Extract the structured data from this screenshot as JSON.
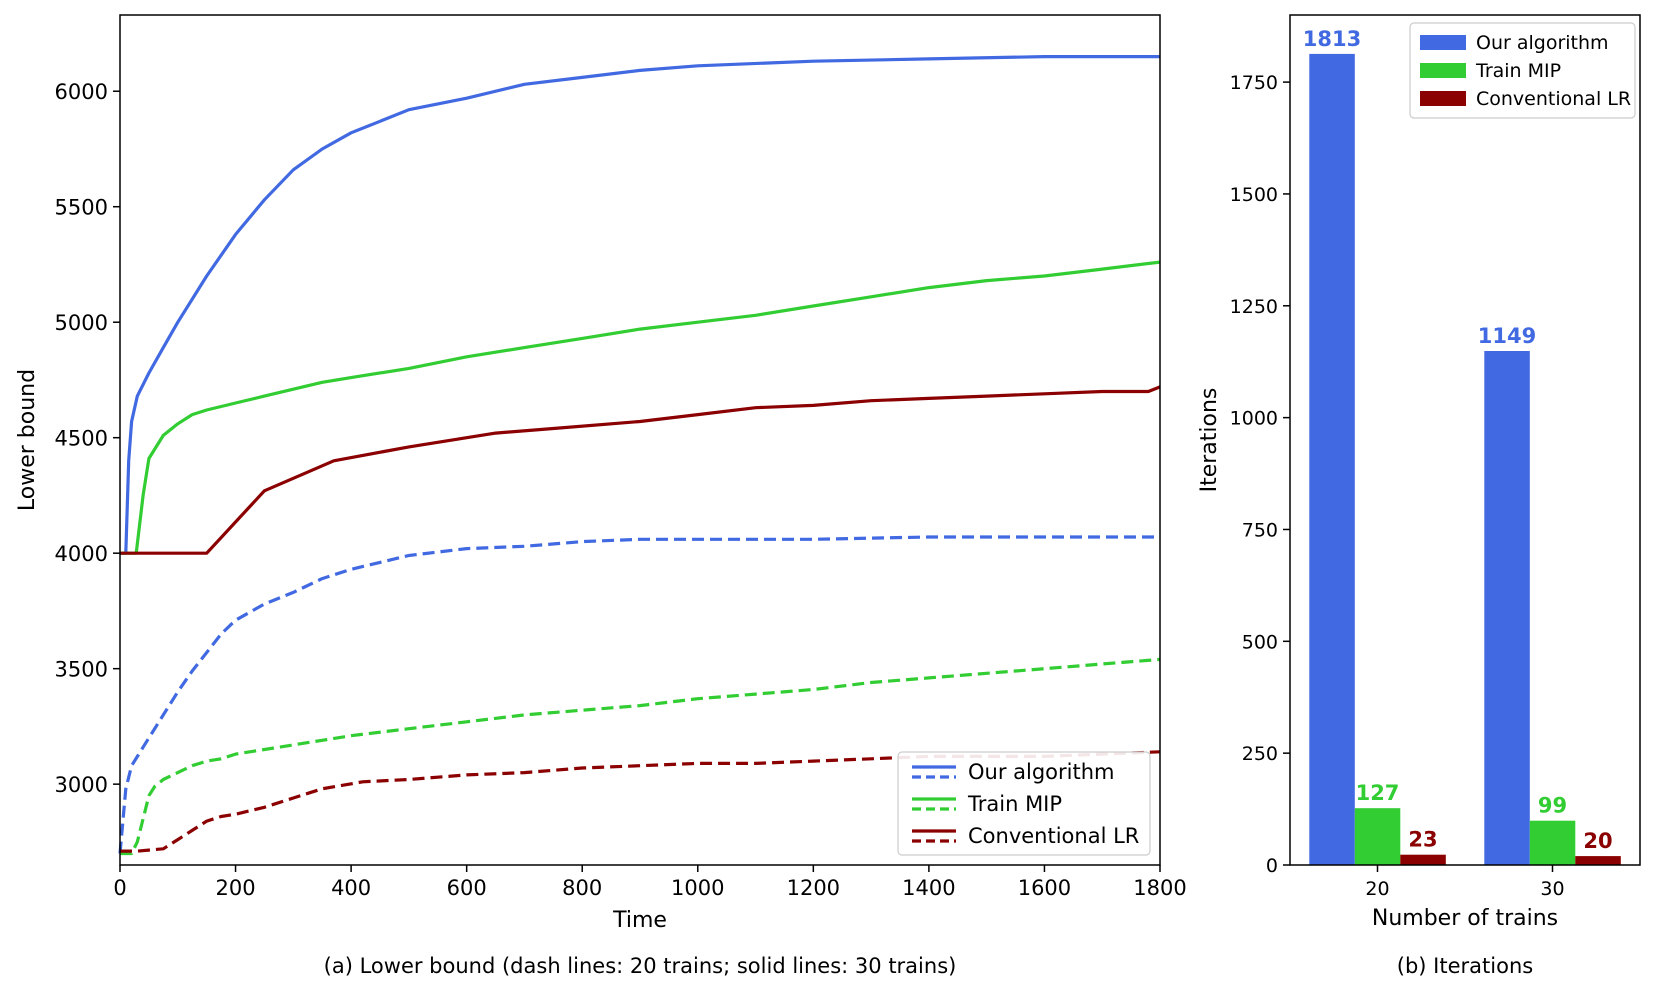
{
  "chart_data": [
    {
      "type": "line",
      "caption": "(a) Lower bound (dash lines: 20 trains; solid lines: 30 trains)",
      "xlabel": "Time",
      "ylabel": "Lower bound",
      "xlim": [
        0,
        1800
      ],
      "ylim": [
        2650,
        6330
      ],
      "xticks": [
        0,
        200,
        400,
        600,
        800,
        1000,
        1200,
        1400,
        1600,
        1800
      ],
      "yticks": [
        3000,
        3500,
        4000,
        4500,
        5000,
        5500,
        6000
      ],
      "grid": false,
      "legend": {
        "placement": "lower-right",
        "entries": [
          {
            "label": "Our algorithm",
            "color": "#4169E1"
          },
          {
            "label": "Train MIP",
            "color": "#32CD32"
          },
          {
            "label": "Conventional LR",
            "color": "#8B0000"
          }
        ]
      },
      "series": [
        {
          "name": "Our algorithm",
          "trains": 30,
          "style": "solid",
          "color": "#4169E1",
          "x": [
            0,
            10,
            15,
            20,
            30,
            50,
            75,
            100,
            150,
            200,
            250,
            300,
            350,
            400,
            450,
            500,
            600,
            700,
            800,
            900,
            1000,
            1200,
            1400,
            1600,
            1800
          ],
          "y": [
            4000,
            4000,
            4400,
            4570,
            4680,
            4780,
            4890,
            5000,
            5200,
            5380,
            5530,
            5660,
            5750,
            5820,
            5870,
            5920,
            5970,
            6030,
            6060,
            6090,
            6110,
            6130,
            6140,
            6150,
            6150
          ]
        },
        {
          "name": "Train MIP",
          "trains": 30,
          "style": "solid",
          "color": "#32CD32",
          "x": [
            0,
            28,
            40,
            50,
            75,
            100,
            125,
            150,
            200,
            250,
            300,
            350,
            400,
            500,
            600,
            700,
            800,
            900,
            1000,
            1100,
            1200,
            1300,
            1400,
            1500,
            1600,
            1700,
            1800
          ],
          "y": [
            4000,
            4000,
            4250,
            4410,
            4510,
            4560,
            4600,
            4620,
            4650,
            4680,
            4710,
            4740,
            4760,
            4800,
            4850,
            4890,
            4930,
            4970,
            5000,
            5030,
            5070,
            5110,
            5150,
            5180,
            5200,
            5230,
            5260
          ]
        },
        {
          "name": "Conventional LR",
          "trains": 30,
          "style": "solid",
          "color": "#8B0000",
          "x": [
            0,
            150,
            250,
            370,
            500,
            650,
            750,
            900,
            1000,
            1100,
            1200,
            1300,
            1400,
            1500,
            1600,
            1700,
            1780,
            1800
          ],
          "y": [
            4000,
            4000,
            4270,
            4400,
            4460,
            4520,
            4540,
            4570,
            4600,
            4630,
            4640,
            4660,
            4670,
            4680,
            4690,
            4700,
            4700,
            4720
          ]
        },
        {
          "name": "Our algorithm",
          "trains": 20,
          "style": "dashed",
          "color": "#4169E1",
          "x": [
            0,
            10,
            20,
            40,
            75,
            100,
            125,
            150,
            175,
            200,
            250,
            300,
            350,
            400,
            450,
            500,
            600,
            700,
            800,
            900,
            1000,
            1200,
            1400,
            1600,
            1800
          ],
          "y": [
            2700,
            2980,
            3080,
            3160,
            3300,
            3400,
            3490,
            3570,
            3650,
            3710,
            3780,
            3830,
            3890,
            3930,
            3960,
            3990,
            4020,
            4030,
            4050,
            4060,
            4060,
            4060,
            4070,
            4070,
            4070
          ]
        },
        {
          "name": "Train MIP",
          "trains": 20,
          "style": "dashed",
          "color": "#32CD32",
          "x": [
            0,
            20,
            30,
            40,
            50,
            60,
            75,
            100,
            125,
            150,
            175,
            200,
            250,
            300,
            350,
            400,
            500,
            600,
            700,
            800,
            900,
            1000,
            1100,
            1200,
            1300,
            1400,
            1500,
            1600,
            1700,
            1800
          ],
          "y": [
            2700,
            2700,
            2750,
            2850,
            2950,
            2990,
            3020,
            3050,
            3080,
            3100,
            3110,
            3130,
            3150,
            3170,
            3190,
            3210,
            3240,
            3270,
            3300,
            3320,
            3340,
            3370,
            3390,
            3410,
            3440,
            3460,
            3480,
            3500,
            3520,
            3540
          ]
        },
        {
          "name": "Conventional LR",
          "trains": 20,
          "style": "dashed",
          "color": "#8B0000",
          "x": [
            0,
            30,
            75,
            100,
            125,
            150,
            175,
            200,
            250,
            300,
            350,
            420,
            500,
            600,
            700,
            800,
            900,
            1000,
            1100,
            1200,
            1300,
            1400,
            1500,
            1600,
            1700,
            1800
          ],
          "y": [
            2710,
            2710,
            2720,
            2760,
            2800,
            2840,
            2860,
            2870,
            2900,
            2940,
            2980,
            3010,
            3020,
            3040,
            3050,
            3070,
            3080,
            3090,
            3090,
            3100,
            3110,
            3120,
            3120,
            3120,
            3130,
            3140
          ]
        }
      ]
    },
    {
      "type": "bar",
      "caption": "(b) Iterations",
      "xlabel": "Number of trains",
      "ylabel": "Iterations",
      "categories": [
        "20",
        "30"
      ],
      "ylim": [
        0,
        1900
      ],
      "yticks": [
        0,
        250,
        500,
        750,
        1000,
        1250,
        1500,
        1750
      ],
      "grid": false,
      "legend": {
        "placement": "top-right"
      },
      "series": [
        {
          "name": "Our algorithm",
          "color": "#4169E1",
          "values": [
            1813,
            1149
          ]
        },
        {
          "name": "Train MIP",
          "color": "#32CD32",
          "values": [
            127,
            99
          ]
        },
        {
          "name": "Conventional LR",
          "color": "#8B0000",
          "values": [
            23,
            20
          ]
        }
      ]
    }
  ]
}
